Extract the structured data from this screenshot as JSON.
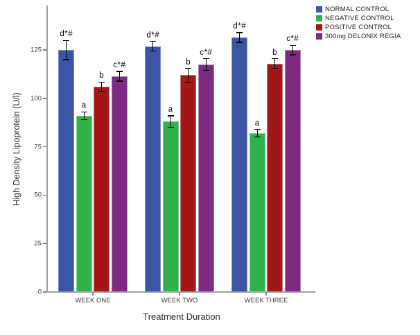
{
  "chart_data": {
    "type": "bar",
    "title": "",
    "xlabel": "Treatment Duration",
    "ylabel": "High Density Lipoprotein (U/l)",
    "categories": [
      "WEEK ONE",
      "WEEK TWO",
      "WEEK THREE"
    ],
    "yticks": [
      0,
      25,
      50,
      75,
      100,
      125
    ],
    "ylim": [
      0,
      148
    ],
    "grid": false,
    "legend_position": "top-right",
    "axis_color": "#9e9e9e",
    "error_bar_color": "#000000",
    "series": [
      {
        "name": "NORMAL CONTROL",
        "color": "#3B55A4",
        "edge": "#7b8fc9",
        "values": [
          125,
          127,
          131.5
        ],
        "errors": [
          5,
          2.5,
          2.5
        ],
        "point_labels": [
          "d*#",
          "d*#",
          "d*#"
        ]
      },
      {
        "name": "NEGATIVE CONTROL",
        "color": "#2FB24A",
        "edge": "#7fd092",
        "values": [
          91,
          88,
          82
        ],
        "errors": [
          2,
          3,
          2
        ],
        "point_labels": [
          "a",
          "a",
          "a"
        ]
      },
      {
        "name": "POSITIVE CONTROL",
        "color": "#A31718",
        "edge": "#c97b7b",
        "values": [
          106,
          112,
          118
        ],
        "errors": [
          2.5,
          3.5,
          2.5
        ],
        "point_labels": [
          "b",
          "b",
          "b"
        ]
      },
      {
        "name": "300mg DELONIX REGIA",
        "color": "#7D2A82",
        "edge": "#b583ba",
        "values": [
          111.5,
          117.5,
          125
        ],
        "errors": [
          2.5,
          3,
          2.5
        ],
        "point_labels": [
          "c*#",
          "c*#",
          "c*#"
        ]
      }
    ]
  }
}
